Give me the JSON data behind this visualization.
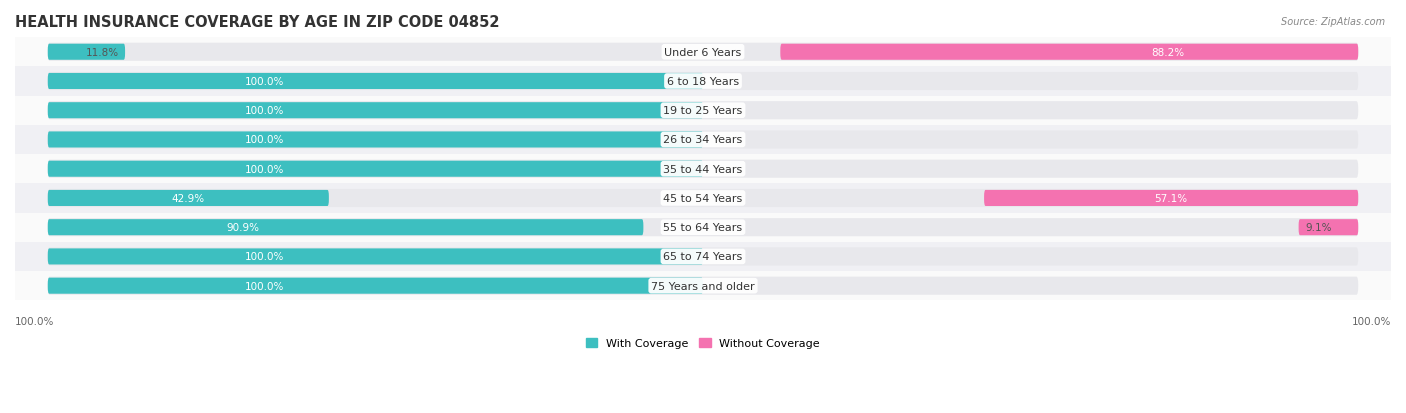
{
  "title": "HEALTH INSURANCE COVERAGE BY AGE IN ZIP CODE 04852",
  "source": "Source: ZipAtlas.com",
  "categories": [
    "Under 6 Years",
    "6 to 18 Years",
    "19 to 25 Years",
    "26 to 34 Years",
    "35 to 44 Years",
    "45 to 54 Years",
    "55 to 64 Years",
    "65 to 74 Years",
    "75 Years and older"
  ],
  "with_coverage": [
    11.8,
    100.0,
    100.0,
    100.0,
    100.0,
    42.9,
    90.9,
    100.0,
    100.0
  ],
  "without_coverage": [
    88.2,
    0.0,
    0.0,
    0.0,
    0.0,
    57.1,
    9.1,
    0.0,
    0.0
  ],
  "with_color": "#3DBFC0",
  "without_color": "#F472B0",
  "track_color": "#E8E8EC",
  "row_bg_even": "#FAFAFA",
  "row_bg_odd": "#F0F0F4",
  "title_fontsize": 10.5,
  "cat_label_fontsize": 8,
  "bar_label_fontsize": 7.5,
  "legend_fontsize": 8,
  "axis_label_fontsize": 7.5,
  "source_fontsize": 7
}
